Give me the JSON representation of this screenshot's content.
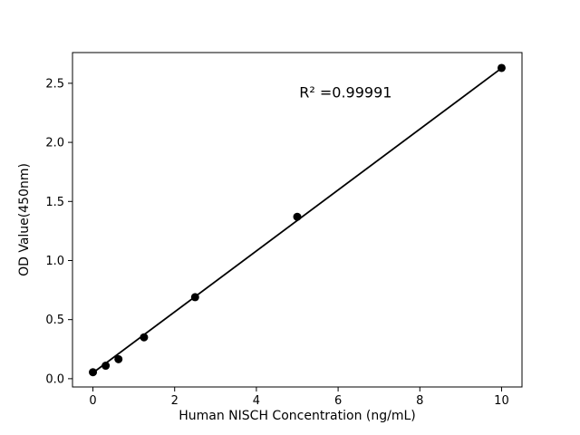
{
  "chart_data": {
    "type": "scatter",
    "title": "",
    "xlabel": "Human NISCH Concentration (ng/mL)",
    "ylabel": "OD Value(450nm)",
    "annotation": "R² =0.99991",
    "annotation_xy": [
      5.05,
      2.38
    ],
    "x": [
      0,
      0.3125,
      0.625,
      1.25,
      2.5,
      5,
      10
    ],
    "y": [
      0.055,
      0.11,
      0.165,
      0.35,
      0.69,
      1.37,
      2.63
    ],
    "fit_line": {
      "slope": 0.2578,
      "intercept": 0.05,
      "x_start": 0,
      "x_end": 10
    },
    "xlim": [
      -0.5,
      10.5
    ],
    "ylim": [
      -0.07,
      2.76
    ],
    "xticks": {
      "values": [
        0,
        2,
        4,
        6,
        8,
        10
      ],
      "labels": [
        "0",
        "2",
        "4",
        "6",
        "8",
        "10"
      ]
    },
    "yticks": {
      "values": [
        0,
        0.5,
        1,
        1.5,
        2,
        2.5
      ],
      "labels": [
        "0.0",
        "0.5",
        "1.0",
        "1.5",
        "2.0",
        "2.5"
      ]
    },
    "grid": false,
    "legend": "none",
    "marker_color": "#000000",
    "line_color": "#000000",
    "background": "#ffffff"
  }
}
